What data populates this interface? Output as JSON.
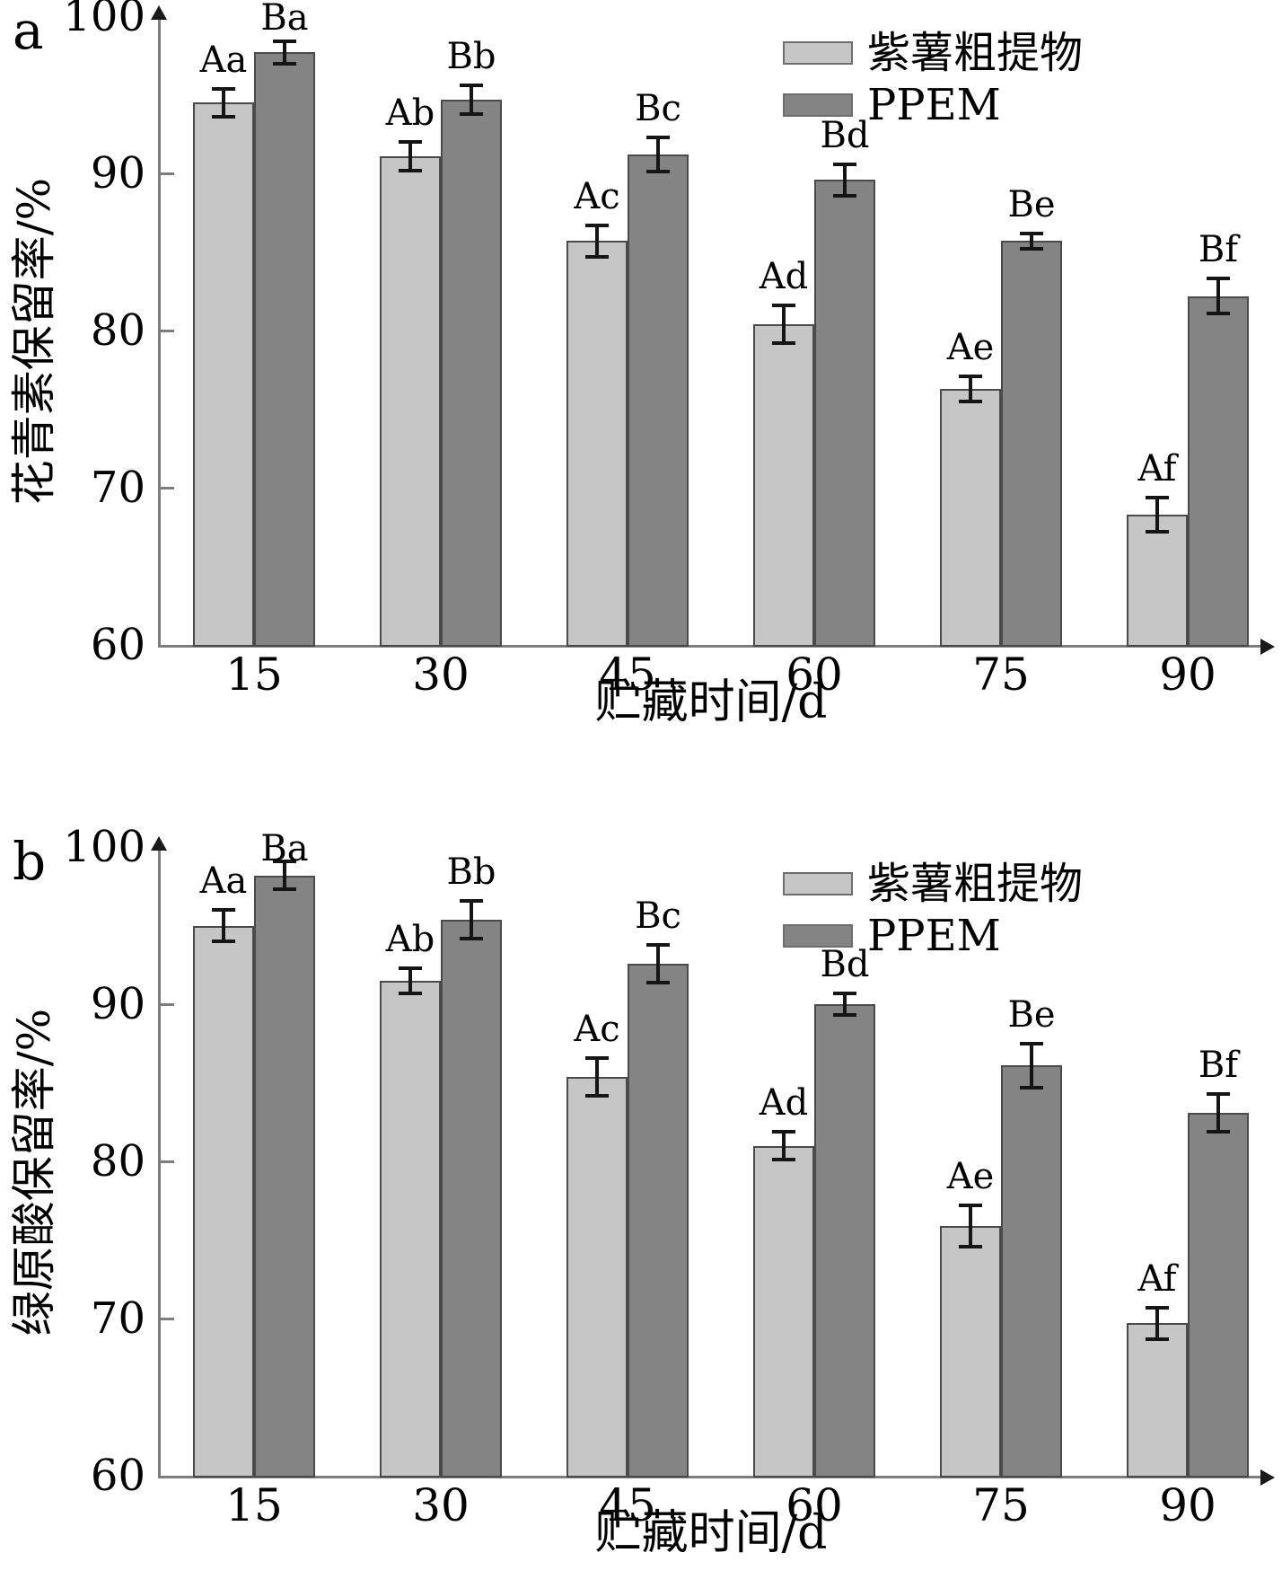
{
  "chart_data": [
    {
      "type": "bar",
      "panel_label": "a",
      "xlabel": "贮藏时间/d",
      "ylabel": "花青素保留率/%",
      "ylim": [
        60,
        100
      ],
      "yticks": [
        100,
        90,
        80,
        70,
        60
      ],
      "grid": false,
      "legend_position": "top-right",
      "categories": [
        "15",
        "30",
        "45",
        "60",
        "75",
        "90"
      ],
      "series": [
        {
          "name": "紫薯粗提物",
          "color": "#c6c6c6",
          "values": [
            94.5,
            91.1,
            85.7,
            80.4,
            76.3,
            68.3
          ],
          "errors": [
            0.9,
            0.9,
            1.0,
            1.2,
            0.8,
            1.1
          ],
          "point_labels": [
            "Aa",
            "Ab",
            "Ac",
            "Ad",
            "Ae",
            "Af"
          ]
        },
        {
          "name": "PPEM",
          "color": "#848484",
          "values": [
            97.7,
            94.7,
            91.2,
            89.6,
            85.7,
            82.2
          ],
          "errors": [
            0.7,
            0.9,
            1.1,
            1.0,
            0.5,
            1.1
          ],
          "point_labels": [
            "Ba",
            "Bb",
            "Bc",
            "Bd",
            "Be",
            "Bf"
          ]
        }
      ]
    },
    {
      "type": "bar",
      "panel_label": "b",
      "xlabel": "贮藏时间/d",
      "ylabel": "绿原酸保留率/%",
      "ylim": [
        60,
        100
      ],
      "yticks": [
        100,
        90,
        80,
        70,
        60
      ],
      "grid": false,
      "legend_position": "top-right",
      "categories": [
        "15",
        "30",
        "45",
        "60",
        "75",
        "90"
      ],
      "series": [
        {
          "name": "紫薯粗提物",
          "color": "#c6c6c6",
          "values": [
            95.0,
            91.5,
            85.4,
            81.0,
            75.9,
            69.7
          ],
          "errors": [
            1.0,
            0.8,
            1.2,
            0.9,
            1.3,
            1.0
          ],
          "point_labels": [
            "Aa",
            "Ab",
            "Ac",
            "Ad",
            "Ae",
            "Af"
          ]
        },
        {
          "name": "PPEM",
          "color": "#848484",
          "values": [
            98.2,
            95.4,
            92.6,
            90.0,
            86.1,
            83.1
          ],
          "errors": [
            0.9,
            1.2,
            1.2,
            0.7,
            1.4,
            1.2
          ],
          "point_labels": [
            "Ba",
            "Bb",
            "Bc",
            "Bd",
            "Be",
            "Bf"
          ]
        }
      ]
    }
  ]
}
